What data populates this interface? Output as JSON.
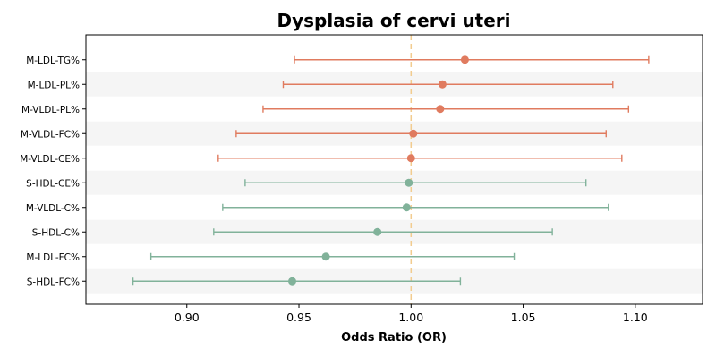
{
  "chart_data": {
    "type": "forest",
    "title": "Dysplasia of cervi uteri",
    "xlabel": "Odds Ratio (OR)",
    "xlim": [
      0.855,
      1.13
    ],
    "xticks": [
      0.9,
      0.95,
      1.0,
      1.05,
      1.1
    ],
    "xtick_labels": [
      "0.90",
      "0.95",
      "1.00",
      "1.05",
      "1.10"
    ],
    "reference_line": 1.0,
    "band_shading": "alternating rows",
    "colors": {
      "increased": "#E07B5F",
      "decreased": "#81B29A",
      "reference": "#F2CC8F",
      "band": "#F5F5F5",
      "axis": "#000000"
    },
    "rows": [
      {
        "label": "M-LDL-TG%",
        "or": 1.024,
        "lo": 0.948,
        "hi": 1.106,
        "group": "increased"
      },
      {
        "label": "M-LDL-PL%",
        "or": 1.014,
        "lo": 0.943,
        "hi": 1.09,
        "group": "increased"
      },
      {
        "label": "M-VLDL-PL%",
        "or": 1.013,
        "lo": 0.934,
        "hi": 1.097,
        "group": "increased"
      },
      {
        "label": "M-VLDL-FC%",
        "or": 1.001,
        "lo": 0.922,
        "hi": 1.087,
        "group": "increased"
      },
      {
        "label": "M-VLDL-CE%",
        "or": 1.0,
        "lo": 0.914,
        "hi": 1.094,
        "group": "increased"
      },
      {
        "label": "S-HDL-CE%",
        "or": 0.999,
        "lo": 0.926,
        "hi": 1.078,
        "group": "decreased"
      },
      {
        "label": "M-VLDL-C%",
        "or": 0.998,
        "lo": 0.916,
        "hi": 1.088,
        "group": "decreased"
      },
      {
        "label": "S-HDL-C%",
        "or": 0.985,
        "lo": 0.912,
        "hi": 1.063,
        "group": "decreased"
      },
      {
        "label": "M-LDL-FC%",
        "or": 0.962,
        "lo": 0.884,
        "hi": 1.046,
        "group": "decreased"
      },
      {
        "label": "S-HDL-FC%",
        "or": 0.947,
        "lo": 0.876,
        "hi": 1.022,
        "group": "decreased"
      }
    ]
  }
}
